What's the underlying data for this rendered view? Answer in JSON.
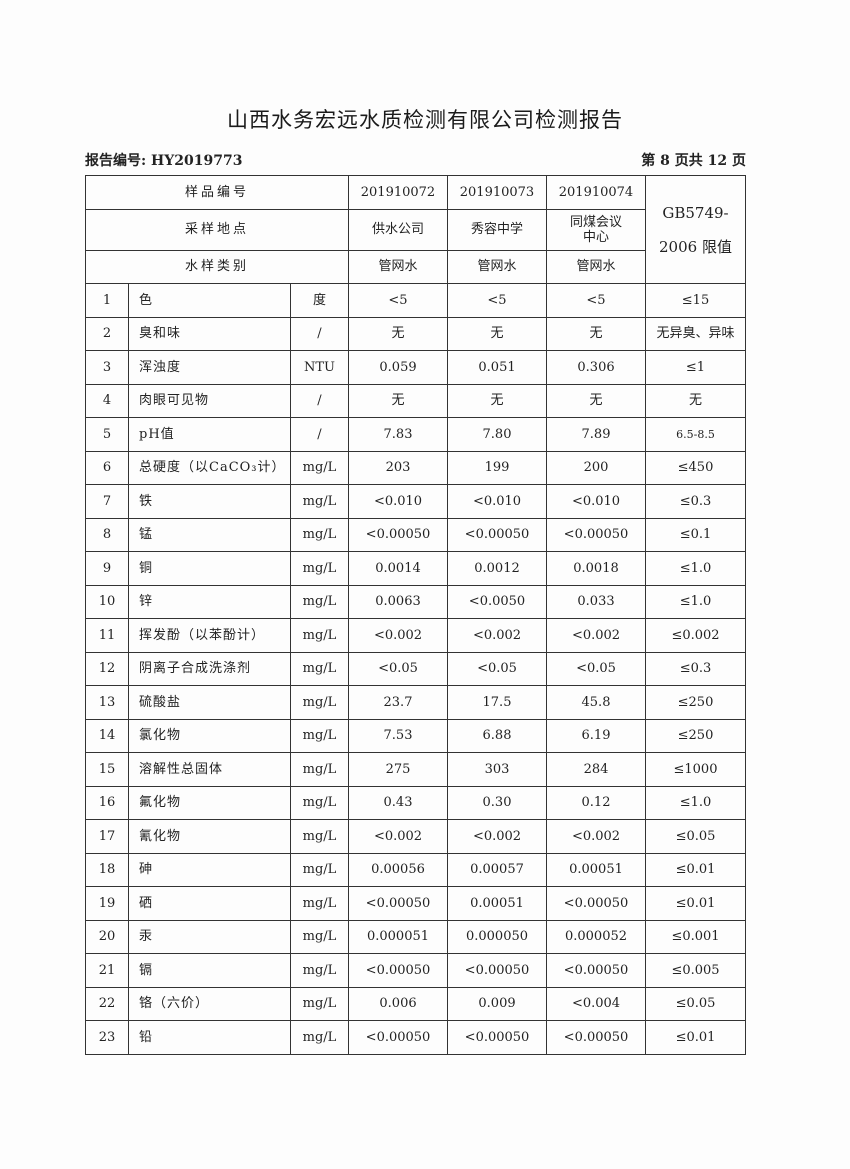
{
  "title": "山西水务宏远水质检测有限公司检测报告",
  "report_no": "报告编号: HY2019773",
  "page_info": "第 8 页共 12 页",
  "header": {
    "sample_no_label": "样品编号",
    "sample_ids": [
      "201910072",
      "201910073",
      "201910074"
    ],
    "location_label": "采样地点",
    "locations": [
      "供水公司",
      "秀容中学",
      "同煤会议中心"
    ],
    "type_label": "水样类别",
    "types": [
      "管网水",
      "管网水",
      "管网水"
    ],
    "limit_label": "GB5749-2006 限值"
  },
  "rows": [
    {
      "no": "1",
      "item": "色",
      "unit": "度",
      "v": [
        "<5",
        "<5",
        "<5"
      ],
      "limit": "≤15"
    },
    {
      "no": "2",
      "item": "臭和味",
      "unit": "/",
      "v": [
        "无",
        "无",
        "无"
      ],
      "limit": "无异臭、异味"
    },
    {
      "no": "3",
      "item": "浑浊度",
      "unit": "NTU",
      "v": [
        "0.059",
        "0.051",
        "0.306"
      ],
      "limit": "≤1"
    },
    {
      "no": "4",
      "item": "肉眼可见物",
      "unit": "/",
      "v": [
        "无",
        "无",
        "无"
      ],
      "limit": "无"
    },
    {
      "no": "5",
      "item": "pH值",
      "unit": "/",
      "v": [
        "7.83",
        "7.80",
        "7.89"
      ],
      "limit": "6.5-8.5"
    },
    {
      "no": "6",
      "item": "总硬度（以CaCO₃计）",
      "unit": "mg/L",
      "v": [
        "203",
        "199",
        "200"
      ],
      "limit": "≤450"
    },
    {
      "no": "7",
      "item": "铁",
      "unit": "mg/L",
      "v": [
        "<0.010",
        "<0.010",
        "<0.010"
      ],
      "limit": "≤0.3"
    },
    {
      "no": "8",
      "item": "锰",
      "unit": "mg/L",
      "v": [
        "<0.00050",
        "<0.00050",
        "<0.00050"
      ],
      "limit": "≤0.1"
    },
    {
      "no": "9",
      "item": "铜",
      "unit": "mg/L",
      "v": [
        "0.0014",
        "0.0012",
        "0.0018"
      ],
      "limit": "≤1.0"
    },
    {
      "no": "10",
      "item": "锌",
      "unit": "mg/L",
      "v": [
        "0.0063",
        "<0.0050",
        "0.033"
      ],
      "limit": "≤1.0"
    },
    {
      "no": "11",
      "item": "挥发酚（以苯酚计）",
      "unit": "mg/L",
      "v": [
        "<0.002",
        "<0.002",
        "<0.002"
      ],
      "limit": "≤0.002"
    },
    {
      "no": "12",
      "item": "阴离子合成洗涤剂",
      "unit": "mg/L",
      "v": [
        "<0.05",
        "<0.05",
        "<0.05"
      ],
      "limit": "≤0.3"
    },
    {
      "no": "13",
      "item": "硫酸盐",
      "unit": "mg/L",
      "v": [
        "23.7",
        "17.5",
        "45.8"
      ],
      "limit": "≤250"
    },
    {
      "no": "14",
      "item": "氯化物",
      "unit": "mg/L",
      "v": [
        "7.53",
        "6.88",
        "6.19"
      ],
      "limit": "≤250"
    },
    {
      "no": "15",
      "item": "溶解性总固体",
      "unit": "mg/L",
      "v": [
        "275",
        "303",
        "284"
      ],
      "limit": "≤1000"
    },
    {
      "no": "16",
      "item": "氟化物",
      "unit": "mg/L",
      "v": [
        "0.43",
        "0.30",
        "0.12"
      ],
      "limit": "≤1.0"
    },
    {
      "no": "17",
      "item": "氰化物",
      "unit": "mg/L",
      "v": [
        "<0.002",
        "<0.002",
        "<0.002"
      ],
      "limit": "≤0.05"
    },
    {
      "no": "18",
      "item": "砷",
      "unit": "mg/L",
      "v": [
        "0.00056",
        "0.00057",
        "0.00051"
      ],
      "limit": "≤0.01"
    },
    {
      "no": "19",
      "item": "硒",
      "unit": "mg/L",
      "v": [
        "<0.00050",
        "0.00051",
        "<0.00050"
      ],
      "limit": "≤0.01"
    },
    {
      "no": "20",
      "item": "汞",
      "unit": "mg/L",
      "v": [
        "0.000051",
        "0.000050",
        "0.000052"
      ],
      "limit": "≤0.001"
    },
    {
      "no": "21",
      "item": "镉",
      "unit": "mg/L",
      "v": [
        "<0.00050",
        "<0.00050",
        "<0.00050"
      ],
      "limit": "≤0.005"
    },
    {
      "no": "22",
      "item": "铬（六价）",
      "unit": "mg/L",
      "v": [
        "0.006",
        "0.009",
        "<0.004"
      ],
      "limit": "≤0.05"
    },
    {
      "no": "23",
      "item": "铅",
      "unit": "mg/L",
      "v": [
        "<0.00050",
        "<0.00050",
        "<0.00050"
      ],
      "limit": "≤0.01"
    }
  ]
}
